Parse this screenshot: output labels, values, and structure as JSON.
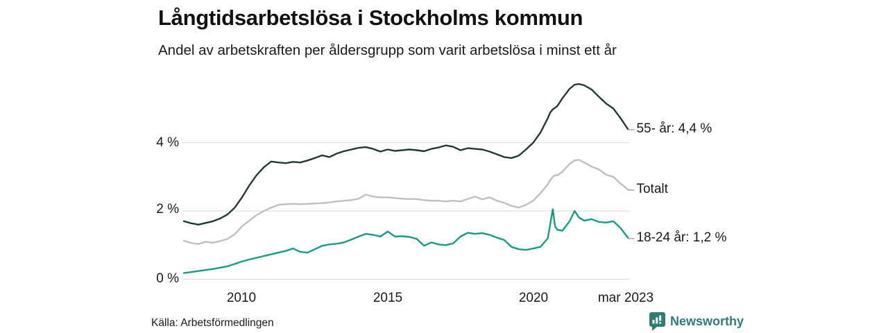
{
  "chart_data": {
    "type": "line",
    "title": "Långtidsarbetslösa i Stockholms kommun",
    "subtitle": "Andel av arbetskraften per åldersgrupp som varit arbetslösa i minst ett år",
    "xlabel": "",
    "ylabel": "",
    "xlim": [
      2008.0,
      2023.25
    ],
    "ylim": [
      0,
      6
    ],
    "grid": true,
    "legend_position": "right-end-labels",
    "end_label_connector": "–",
    "y_ticks": [
      {
        "v": 4,
        "label": "4 %"
      },
      {
        "v": 2,
        "label": "2 %"
      },
      {
        "v": 0,
        "label": "0 %"
      }
    ],
    "x_ticks": [
      {
        "x": 2010,
        "label": "2010"
      },
      {
        "x": 2015,
        "label": "2015"
      },
      {
        "x": 2020,
        "label": "2020"
      },
      {
        "x": 2023.25,
        "label": "mar 2023"
      }
    ],
    "x": [
      2008.0,
      2008.25,
      2008.5,
      2008.75,
      2009.0,
      2009.25,
      2009.5,
      2009.75,
      2010.0,
      2010.25,
      2010.5,
      2010.75,
      2011.0,
      2011.25,
      2011.5,
      2011.75,
      2012.0,
      2012.25,
      2012.5,
      2012.75,
      2013.0,
      2013.25,
      2013.5,
      2013.75,
      2014.0,
      2014.25,
      2014.5,
      2014.75,
      2015.0,
      2015.25,
      2015.5,
      2015.75,
      2016.0,
      2016.25,
      2016.5,
      2016.75,
      2017.0,
      2017.25,
      2017.5,
      2017.75,
      2018.0,
      2018.25,
      2018.5,
      2018.75,
      2019.0,
      2019.25,
      2019.5,
      2019.75,
      2020.0,
      2020.25,
      2020.5,
      2020.58,
      2020.67,
      2020.75,
      2020.83,
      2021.0,
      2021.25,
      2021.42,
      2021.58,
      2021.75,
      2022.0,
      2022.25,
      2022.5,
      2022.75,
      2023.0,
      2023.25
    ],
    "series": [
      {
        "id": "55",
        "name": "55- år",
        "end_label": "55- år: 4,4 %",
        "end_value": "4,4 %",
        "color": "#1e3b33",
        "values": [
          1.7,
          1.64,
          1.6,
          1.65,
          1.7,
          1.78,
          1.9,
          2.1,
          2.4,
          2.75,
          3.05,
          3.28,
          3.45,
          3.42,
          3.4,
          3.44,
          3.42,
          3.48,
          3.55,
          3.63,
          3.58,
          3.68,
          3.75,
          3.8,
          3.85,
          3.87,
          3.82,
          3.74,
          3.8,
          3.76,
          3.78,
          3.8,
          3.78,
          3.75,
          3.82,
          3.86,
          3.92,
          3.88,
          3.78,
          3.84,
          3.82,
          3.8,
          3.74,
          3.66,
          3.58,
          3.55,
          3.62,
          3.8,
          4.0,
          4.3,
          4.72,
          4.88,
          4.98,
          5.02,
          5.08,
          5.3,
          5.58,
          5.7,
          5.72,
          5.68,
          5.56,
          5.35,
          5.15,
          5.0,
          4.72,
          4.4
        ]
      },
      {
        "id": "totalt",
        "name": "Totalt",
        "end_label": "Totalt",
        "end_value": "",
        "color": "#bfbec8",
        "values": [
          1.13,
          1.06,
          1.03,
          1.1,
          1.07,
          1.12,
          1.18,
          1.32,
          1.55,
          1.72,
          1.88,
          2.0,
          2.1,
          2.18,
          2.2,
          2.21,
          2.2,
          2.21,
          2.22,
          2.23,
          2.25,
          2.28,
          2.3,
          2.32,
          2.36,
          2.48,
          2.42,
          2.4,
          2.4,
          2.38,
          2.36,
          2.35,
          2.35,
          2.32,
          2.3,
          2.3,
          2.28,
          2.3,
          2.28,
          2.35,
          2.42,
          2.34,
          2.4,
          2.3,
          2.24,
          2.15,
          2.1,
          2.18,
          2.3,
          2.52,
          2.78,
          2.9,
          3.0,
          3.05,
          3.04,
          3.15,
          3.38,
          3.48,
          3.5,
          3.42,
          3.3,
          3.22,
          3.06,
          3.0,
          2.8,
          2.63
        ]
      },
      {
        "id": "18-24",
        "name": "18-24 år",
        "end_label": "18-24 år: 1,2 %",
        "end_value": "1,2 %",
        "color": "#149c87",
        "values": [
          0.18,
          0.21,
          0.24,
          0.27,
          0.3,
          0.34,
          0.38,
          0.45,
          0.52,
          0.58,
          0.63,
          0.68,
          0.73,
          0.78,
          0.83,
          0.9,
          0.8,
          0.78,
          0.88,
          0.98,
          1.02,
          1.04,
          1.08,
          1.16,
          1.25,
          1.33,
          1.3,
          1.25,
          1.4,
          1.25,
          1.26,
          1.24,
          1.18,
          0.98,
          1.08,
          1.02,
          1.0,
          1.05,
          1.25,
          1.36,
          1.33,
          1.35,
          1.3,
          1.22,
          1.15,
          0.95,
          0.88,
          0.86,
          0.9,
          0.95,
          1.2,
          1.6,
          2.05,
          1.55,
          1.45,
          1.42,
          1.7,
          2.0,
          1.8,
          1.72,
          1.76,
          1.68,
          1.66,
          1.7,
          1.5,
          1.22
        ]
      }
    ]
  },
  "source": {
    "label": "Källa: Arbetsförmedlingen"
  },
  "branding": {
    "name": "Newsworthy",
    "icon": "newsworthy-logo-icon",
    "color": "#2e7d76"
  },
  "colors": {
    "series_55": "#1e3b33",
    "series_totalt": "#bfbec8",
    "series_18_24": "#149c87",
    "gridline": "#d9d9d9",
    "text": "#1a1a1a"
  }
}
